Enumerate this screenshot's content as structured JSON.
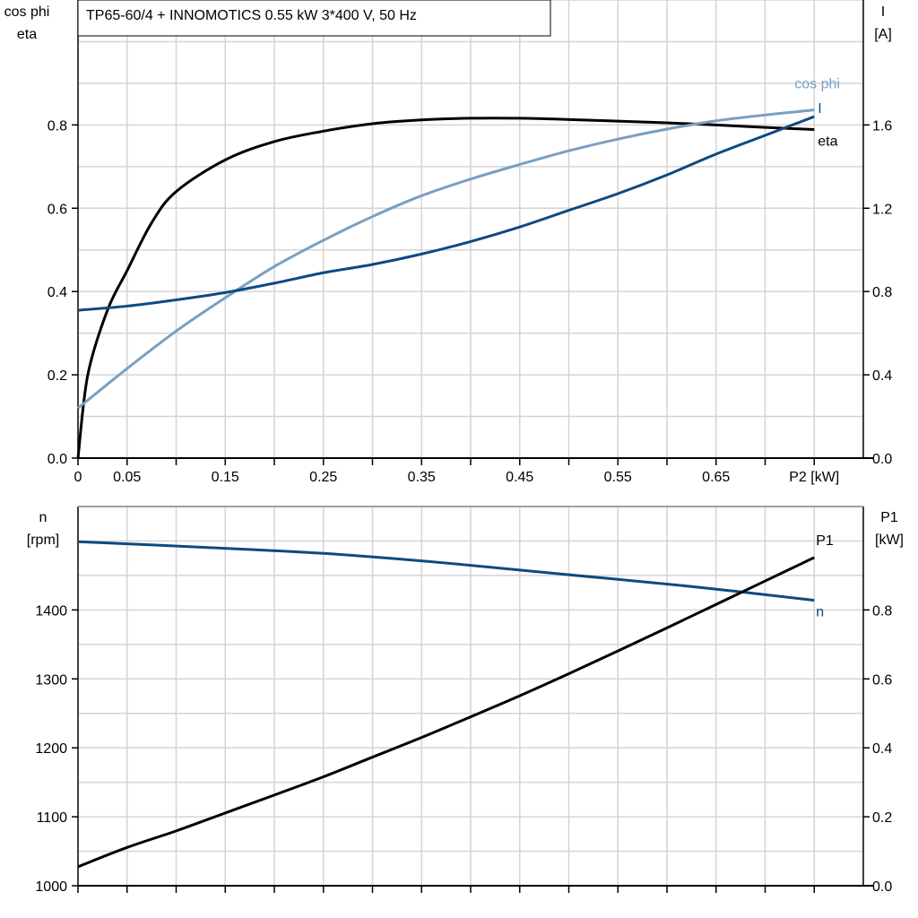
{
  "title": "TP65-60/4 + INNOMOTICS   0.55 kW   3*400 V, 50 Hz",
  "colors": {
    "eta": "#000000",
    "cos_phi": "#7a9fc0",
    "I": "#0d4a80",
    "n": "#0d4a80",
    "P1": "#000000",
    "grid": "#d4d4d4"
  },
  "chart_data": [
    {
      "type": "line",
      "title": "TP65-60/4 + INNOMOTICS   0.55 kW   3*400 V, 50 Hz",
      "xlabel": "P2 [kW]",
      "ylabel_left": [
        "cos phi",
        "eta"
      ],
      "ylabel_right": [
        "I",
        "[A]"
      ],
      "xlim": [
        0,
        0.8
      ],
      "ylim_left": [
        0,
        1.1
      ],
      "ylim_right": [
        0,
        2.2
      ],
      "grid": true,
      "x_ticks": [
        "0",
        "0.05",
        "0.15",
        "0.25",
        "0.35",
        "0.45",
        "0.55",
        "0.65"
      ],
      "y_ticks_left": [
        "0.0",
        "0.2",
        "0.4",
        "0.6",
        "0.8"
      ],
      "y_ticks_right": [
        "0.0",
        "0.4",
        "0.8",
        "1.2",
        "1.6"
      ],
      "series": [
        {
          "name": "eta",
          "axis": "left",
          "x": [
            0,
            0.01,
            0.03,
            0.05,
            0.075,
            0.1,
            0.15,
            0.2,
            0.25,
            0.3,
            0.35,
            0.4,
            0.45,
            0.5,
            0.55,
            0.6,
            0.65,
            0.7,
            0.75
          ],
          "y": [
            0,
            0.2,
            0.355,
            0.45,
            0.565,
            0.64,
            0.716,
            0.76,
            0.785,
            0.803,
            0.812,
            0.816,
            0.816,
            0.813,
            0.809,
            0.805,
            0.8,
            0.794,
            0.789
          ]
        },
        {
          "name": "cos phi",
          "axis": "left",
          "x": [
            0,
            0.05,
            0.1,
            0.15,
            0.2,
            0.25,
            0.3,
            0.35,
            0.4,
            0.45,
            0.5,
            0.55,
            0.6,
            0.65,
            0.7,
            0.75
          ],
          "y": [
            0.12,
            0.215,
            0.305,
            0.385,
            0.46,
            0.523,
            0.58,
            0.63,
            0.67,
            0.705,
            0.738,
            0.766,
            0.79,
            0.81,
            0.824,
            0.836
          ]
        },
        {
          "name": "I",
          "axis": "right",
          "x": [
            0,
            0.05,
            0.1,
            0.15,
            0.2,
            0.25,
            0.3,
            0.35,
            0.4,
            0.45,
            0.5,
            0.55,
            0.6,
            0.65,
            0.7,
            0.75
          ],
          "y": [
            0.71,
            0.73,
            0.76,
            0.795,
            0.84,
            0.89,
            0.93,
            0.98,
            1.04,
            1.11,
            1.19,
            1.27,
            1.36,
            1.46,
            1.55,
            1.64
          ]
        }
      ]
    },
    {
      "type": "line",
      "ylabel_left": [
        "n",
        "[rpm]"
      ],
      "ylabel_right": [
        "P1",
        "[kW]"
      ],
      "xlim": [
        0,
        0.8
      ],
      "ylim_left": [
        1000,
        1550
      ],
      "ylim_right": [
        0,
        1.1
      ],
      "grid": true,
      "y_ticks_left": [
        "1000",
        "1100",
        "1200",
        "1300",
        "1400"
      ],
      "y_ticks_right": [
        "0.0",
        "0.2",
        "0.4",
        "0.6",
        "0.8"
      ],
      "series": [
        {
          "name": "n",
          "axis": "left",
          "x": [
            0,
            0.125,
            0.25,
            0.375,
            0.5,
            0.625,
            0.75
          ],
          "y": [
            1499,
            1491,
            1482,
            1468,
            1451,
            1434,
            1414
          ]
        },
        {
          "name": "P1",
          "axis": "right",
          "x": [
            0,
            0.05,
            0.1,
            0.15,
            0.2,
            0.25,
            0.3,
            0.35,
            0.4,
            0.45,
            0.5,
            0.55,
            0.6,
            0.65,
            0.7,
            0.75
          ],
          "y": [
            0.055,
            0.111,
            0.159,
            0.211,
            0.263,
            0.316,
            0.373,
            0.43,
            0.49,
            0.551,
            0.615,
            0.681,
            0.748,
            0.816,
            0.884,
            0.952
          ]
        }
      ]
    }
  ]
}
